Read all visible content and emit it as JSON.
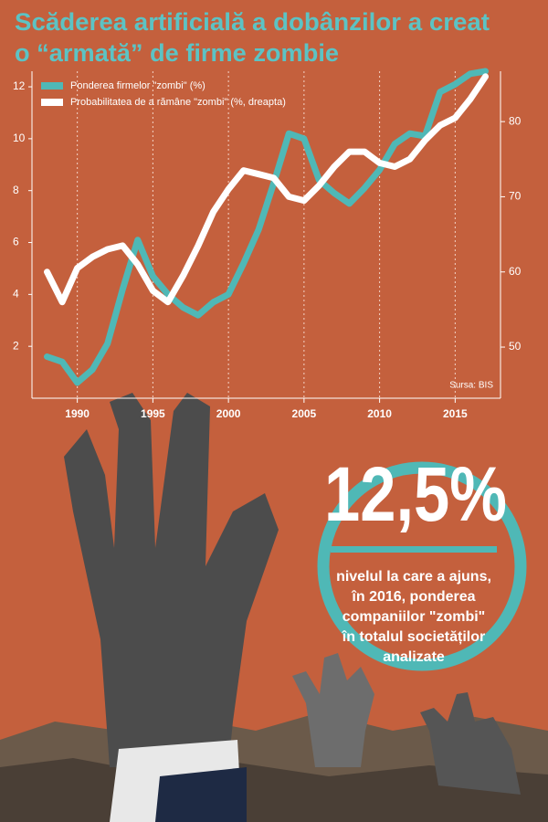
{
  "chart_data": {
    "type": "line",
    "title": [
      "Scăderea artificială a dobânzilor a creat",
      "o “armată” de firme zombie"
    ],
    "x": [
      1988,
      1989,
      1990,
      1991,
      1992,
      1993,
      1994,
      1995,
      1996,
      1997,
      1998,
      1999,
      2000,
      2001,
      2002,
      2003,
      2004,
      2005,
      2006,
      2007,
      2008,
      2009,
      2010,
      2011,
      2012,
      2013,
      2014,
      2015,
      2016,
      2017
    ],
    "series": [
      {
        "name": "Ponderea firmelor \"zombi\" (%)",
        "color": "#4fb8b6",
        "values": [
          1.6,
          1.4,
          0.6,
          1.1,
          2.1,
          4.2,
          6.1,
          4.7,
          4.0,
          3.5,
          3.2,
          3.7,
          4.0,
          5.2,
          6.5,
          8.3,
          10.2,
          10.0,
          8.4,
          7.9,
          7.5,
          8.1,
          8.8,
          9.8,
          10.2,
          10.1,
          11.8,
          12.1,
          12.5,
          12.6
        ]
      },
      {
        "name": "Probabilitatea de a rămâne \"zombi\" (%, dreapta)",
        "color": "#ffffff",
        "axis": "y2",
        "values": [
          60,
          56,
          60.5,
          62,
          63,
          63.5,
          61,
          57.5,
          56,
          59.5,
          63.5,
          68,
          71,
          73.5,
          73,
          72.5,
          70,
          69.5,
          71.5,
          74,
          76,
          76,
          74.5,
          74,
          75,
          77.5,
          79.5,
          80.5,
          83,
          86
        ]
      }
    ],
    "xlim": [
      1987,
      2018
    ],
    "xticks": [
      1990,
      1995,
      2000,
      2005,
      2010,
      2015
    ],
    "ylim": [
      0,
      12.6
    ],
    "yticks": [
      2,
      4,
      6,
      8,
      10,
      12
    ],
    "y2lim": [
      43.2,
      86.7
    ],
    "y2ticks": [
      50,
      60,
      70,
      80
    ],
    "grid": true,
    "legend": "top-left",
    "source": "Sursa: BIS",
    "callout": {
      "headline": "12,5%",
      "text": [
        "nivelul la care a ajuns,",
        "în 2016, ponderea",
        "companiilor \"zombi\"",
        "în totalul societăților",
        "analizate"
      ]
    }
  }
}
